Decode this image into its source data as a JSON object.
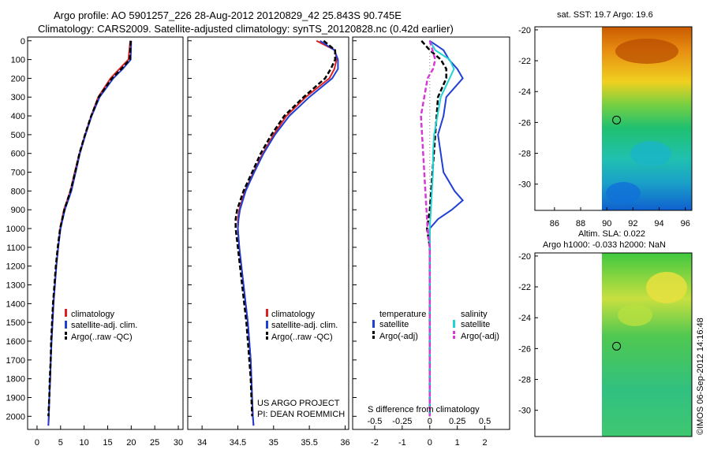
{
  "header": {
    "line1": "Argo profile: AO 5901257_226 28-Aug-2012 20120829_42 25.843S 90.745E",
    "line2": "Climatology: CARS2009. Satellite-adjusted climatology: synTS_20120828.nc (0.42d earlier)"
  },
  "colors": {
    "climatology": "#e02020",
    "satellite": "#1f3fd6",
    "argo": "#000000",
    "sat_salinity": "#22d3d3",
    "argo_salinity": "#d63ad6"
  },
  "chart_data": [
    {
      "type": "line",
      "panel": "temperature-profile",
      "xlim": [
        -2,
        31
      ],
      "ylim": [
        2070,
        -20
      ],
      "xticks": [
        "0",
        "5",
        "10",
        "15",
        "20",
        "25",
        "30"
      ],
      "yticks": [
        "0",
        "100",
        "200",
        "300",
        "400",
        "500",
        "600",
        "700",
        "800",
        "900",
        "1000",
        "1100",
        "1200",
        "1300",
        "1400",
        "1500",
        "1600",
        "1700",
        "1800",
        "1900",
        "2000"
      ],
      "legend": [
        "climatology",
        "satellite-adj. clim.",
        "Argo(..raw -QC)"
      ],
      "series": [
        {
          "name": "climatology",
          "depth": [
            0,
            100,
            150,
            200,
            300,
            400,
            500,
            600,
            700,
            800,
            900,
            1000,
            1100,
            1200,
            1300,
            1400,
            1500,
            1600,
            1700,
            1800,
            1900,
            2000,
            2050
          ],
          "values": [
            19.8,
            19.4,
            17.5,
            15.6,
            13.0,
            11.5,
            10.2,
            9.0,
            8.0,
            7.1,
            5.7,
            4.9,
            4.5,
            4.1,
            3.8,
            3.5,
            3.3,
            3.1,
            2.9,
            2.8,
            2.6,
            2.5,
            2.4
          ]
        },
        {
          "name": "satellite-adj. clim.",
          "depth": [
            0,
            100,
            150,
            200,
            300,
            400,
            500,
            600,
            700,
            800,
            900,
            1000,
            1100,
            1200,
            1300,
            1400,
            1500,
            1600,
            1700,
            1800,
            1900,
            2000,
            2050
          ],
          "values": [
            20.0,
            19.9,
            18.2,
            16.2,
            13.3,
            11.6,
            10.3,
            9.1,
            8.2,
            7.3,
            5.9,
            5.0,
            4.5,
            4.1,
            3.8,
            3.5,
            3.3,
            3.1,
            2.9,
            2.8,
            2.6,
            2.5,
            2.4
          ]
        },
        {
          "name": "Argo(..raw -QC)",
          "depth": [
            0,
            100,
            150,
            200,
            300,
            400,
            500,
            600,
            700,
            800,
            900,
            1000,
            1100,
            1200,
            1300,
            1400,
            1500,
            1600,
            1700,
            1800,
            1900,
            2000
          ],
          "values": [
            19.9,
            19.7,
            17.9,
            15.9,
            13.1,
            11.5,
            10.2,
            9.0,
            8.1,
            7.1,
            5.8,
            4.9,
            4.4,
            4.0,
            3.7,
            3.4,
            3.2,
            3.0,
            2.9,
            2.7,
            2.6,
            2.4
          ]
        }
      ]
    },
    {
      "type": "line",
      "panel": "salinity-profile",
      "xlim": [
        33.8,
        36.05
      ],
      "ylim": [
        2070,
        -20
      ],
      "xticks": [
        "34",
        "34.5",
        "35",
        "35.5",
        "36"
      ],
      "legend": [
        "climatology",
        "satellite-adj. clim.",
        "Argo(..raw -QC)"
      ],
      "annotation": [
        "US ARGO PROJECT",
        "PI: DEAN ROEMMICH"
      ],
      "series": [
        {
          "name": "climatology",
          "depth": [
            0,
            50,
            100,
            150,
            200,
            300,
            400,
            500,
            600,
            700,
            800,
            900,
            950,
            1000,
            1100,
            1200,
            1300,
            1400,
            1500,
            1600,
            1700,
            1800,
            1900,
            2000,
            2050
          ],
          "values": [
            35.6,
            35.86,
            35.88,
            35.85,
            35.78,
            35.45,
            35.18,
            35.0,
            34.85,
            34.72,
            34.6,
            34.52,
            34.5,
            34.5,
            34.52,
            34.55,
            34.58,
            34.61,
            34.64,
            34.66,
            34.68,
            34.69,
            34.7,
            34.71,
            34.72
          ]
        },
        {
          "name": "satellite-adj. clim.",
          "depth": [
            0,
            50,
            100,
            150,
            200,
            300,
            400,
            500,
            600,
            700,
            800,
            900,
            950,
            1000,
            1100,
            1200,
            1300,
            1400,
            1500,
            1600,
            1700,
            1800,
            1900,
            2000,
            2050
          ],
          "values": [
            35.65,
            35.85,
            35.9,
            35.9,
            35.82,
            35.5,
            35.22,
            35.02,
            34.86,
            34.73,
            34.61,
            34.53,
            34.51,
            34.5,
            34.52,
            34.55,
            34.58,
            34.61,
            34.64,
            34.66,
            34.68,
            34.69,
            34.7,
            34.71,
            34.72
          ]
        },
        {
          "name": "Argo(..raw -QC)",
          "depth": [
            0,
            50,
            100,
            150,
            200,
            300,
            400,
            500,
            600,
            700,
            800,
            900,
            950,
            1000,
            1100,
            1200,
            1300,
            1400,
            1500,
            1600,
            1700,
            1800,
            1900,
            2000
          ],
          "values": [
            35.7,
            35.86,
            35.86,
            35.8,
            35.72,
            35.42,
            35.15,
            34.97,
            34.82,
            34.7,
            34.58,
            34.49,
            34.47,
            34.47,
            34.5,
            34.53,
            34.56,
            34.59,
            34.62,
            34.64,
            34.66,
            34.68,
            34.69,
            34.7
          ]
        }
      ]
    },
    {
      "type": "line",
      "panel": "difference-profile",
      "title": "S difference from climatology",
      "xlim": [
        -2.8,
        2.9
      ],
      "ylim": [
        2070,
        -20
      ],
      "xticks_temp": [
        "-2",
        "-1",
        "0",
        "1",
        "2"
      ],
      "xticks_sal": [
        "-0.5",
        "-0.25",
        "0",
        "0.25",
        "0.5"
      ],
      "legend_headers": [
        "temperature",
        "salinity"
      ],
      "legend": [
        "satellite",
        "Argo(-adj)",
        "satellite",
        "Argo(-adj)"
      ],
      "series": [
        {
          "name": "temperature satellite",
          "depth": [
            0,
            50,
            100,
            150,
            200,
            300,
            400,
            500,
            600,
            700,
            800,
            850,
            900,
            950,
            1000,
            1100,
            1200,
            1300,
            1400,
            1600,
            1800,
            2000
          ],
          "values": [
            0.0,
            0.5,
            0.7,
            1.0,
            1.2,
            0.6,
            0.5,
            0.3,
            0.4,
            0.5,
            0.9,
            1.2,
            0.8,
            0.3,
            0.0,
            0.0,
            0.0,
            0.0,
            0.0,
            0.0,
            0.0,
            0.0
          ]
        },
        {
          "name": "temperature Argo(-adj)",
          "depth": [
            0,
            50,
            100,
            150,
            200,
            300,
            400,
            500,
            600,
            700,
            800,
            900,
            1000,
            1100,
            1200,
            1400,
            1600,
            1800,
            2000
          ],
          "values": [
            -0.3,
            0.0,
            0.4,
            0.6,
            0.6,
            0.3,
            0.25,
            0.2,
            0.15,
            0.1,
            0.05,
            0.0,
            -0.1,
            0.0,
            0.0,
            0.0,
            0.0,
            0.0,
            0.0
          ]
        },
        {
          "name": "salinity satellite",
          "depth": [
            0,
            50,
            100,
            150,
            200,
            300,
            400,
            500,
            600,
            700,
            800,
            900,
            1000,
            1100,
            1200,
            1400,
            1600,
            1800,
            2000
          ],
          "values": [
            0.0,
            0.05,
            0.18,
            0.22,
            0.18,
            0.1,
            0.07,
            0.04,
            0.03,
            0.03,
            0.02,
            0.01,
            0.0,
            0.0,
            0.0,
            0.0,
            0.0,
            0.0,
            0.0
          ]
        },
        {
          "name": "salinity Argo(-adj)",
          "depth": [
            0,
            100,
            150,
            200,
            300,
            400,
            500,
            600,
            700,
            800,
            900,
            1000,
            1100,
            1200,
            1400,
            1600,
            1800,
            2000
          ],
          "values": [
            0.0,
            0.05,
            0.03,
            -0.02,
            -0.05,
            -0.08,
            -0.07,
            -0.06,
            -0.05,
            -0.04,
            -0.03,
            -0.02,
            0.0,
            0.0,
            0.0,
            0.0,
            0.0,
            0.0
          ]
        }
      ]
    },
    {
      "type": "heatmap",
      "panel": "sst-map",
      "title": "sat. SST: 19.7 Argo: 19.6",
      "xticks": [
        "86",
        "88",
        "90",
        "92",
        "94",
        "96"
      ],
      "yticks": [
        "-20",
        "-22",
        "-24",
        "-26",
        "-28",
        "-30"
      ],
      "xlim": [
        84.5,
        96.5
      ],
      "ylim": [
        -31.7,
        -19.8
      ],
      "data_lon_range": [
        90,
        96.5
      ],
      "marker": {
        "lon": 90.745,
        "lat": -25.843
      }
    },
    {
      "type": "heatmap",
      "panel": "sla-map",
      "title": "Altim. SLA: 0.022",
      "subtitle": "Argo h1000: -0.033 h2000: NaN",
      "yticks": [
        "-20",
        "-22",
        "-24",
        "-26",
        "-28",
        "-30"
      ],
      "xlim": [
        84.5,
        96.5
      ],
      "ylim": [
        -31.7,
        -19.8
      ],
      "data_lon_range": [
        90,
        96.5
      ],
      "marker": {
        "lon": 90.745,
        "lat": -25.843
      }
    }
  ],
  "watermark": "©IMOS 06-Sep-2012 14:16:48"
}
